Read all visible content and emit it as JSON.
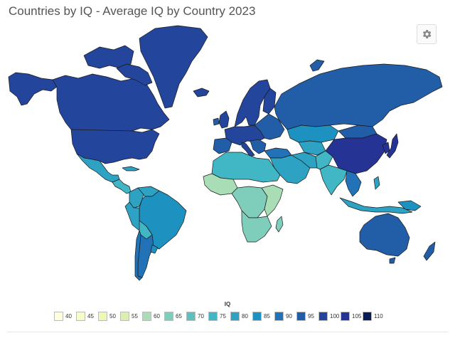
{
  "title": "Countries by IQ - Average IQ by Country 2023",
  "settings_icon": "gear-icon",
  "legend": {
    "title": "IQ",
    "items": [
      {
        "label": "40",
        "color": "#ffffd9"
      },
      {
        "label": "45",
        "color": "#f7fcc9"
      },
      {
        "label": "50",
        "color": "#edf8b1"
      },
      {
        "label": "55",
        "color": "#d9f0b2"
      },
      {
        "label": "60",
        "color": "#a8ddb5"
      },
      {
        "label": "65",
        "color": "#7fcdbb"
      },
      {
        "label": "70",
        "color": "#5cc0c0"
      },
      {
        "label": "75",
        "color": "#41b6c4"
      },
      {
        "label": "80",
        "color": "#2ea2c3"
      },
      {
        "label": "85",
        "color": "#1d91c0"
      },
      {
        "label": "90",
        "color": "#2172b6"
      },
      {
        "label": "95",
        "color": "#225ea8"
      },
      {
        "label": "100",
        "color": "#24459c"
      },
      {
        "label": "105",
        "color": "#253494"
      },
      {
        "label": "110",
        "color": "#081d58"
      }
    ]
  }
}
